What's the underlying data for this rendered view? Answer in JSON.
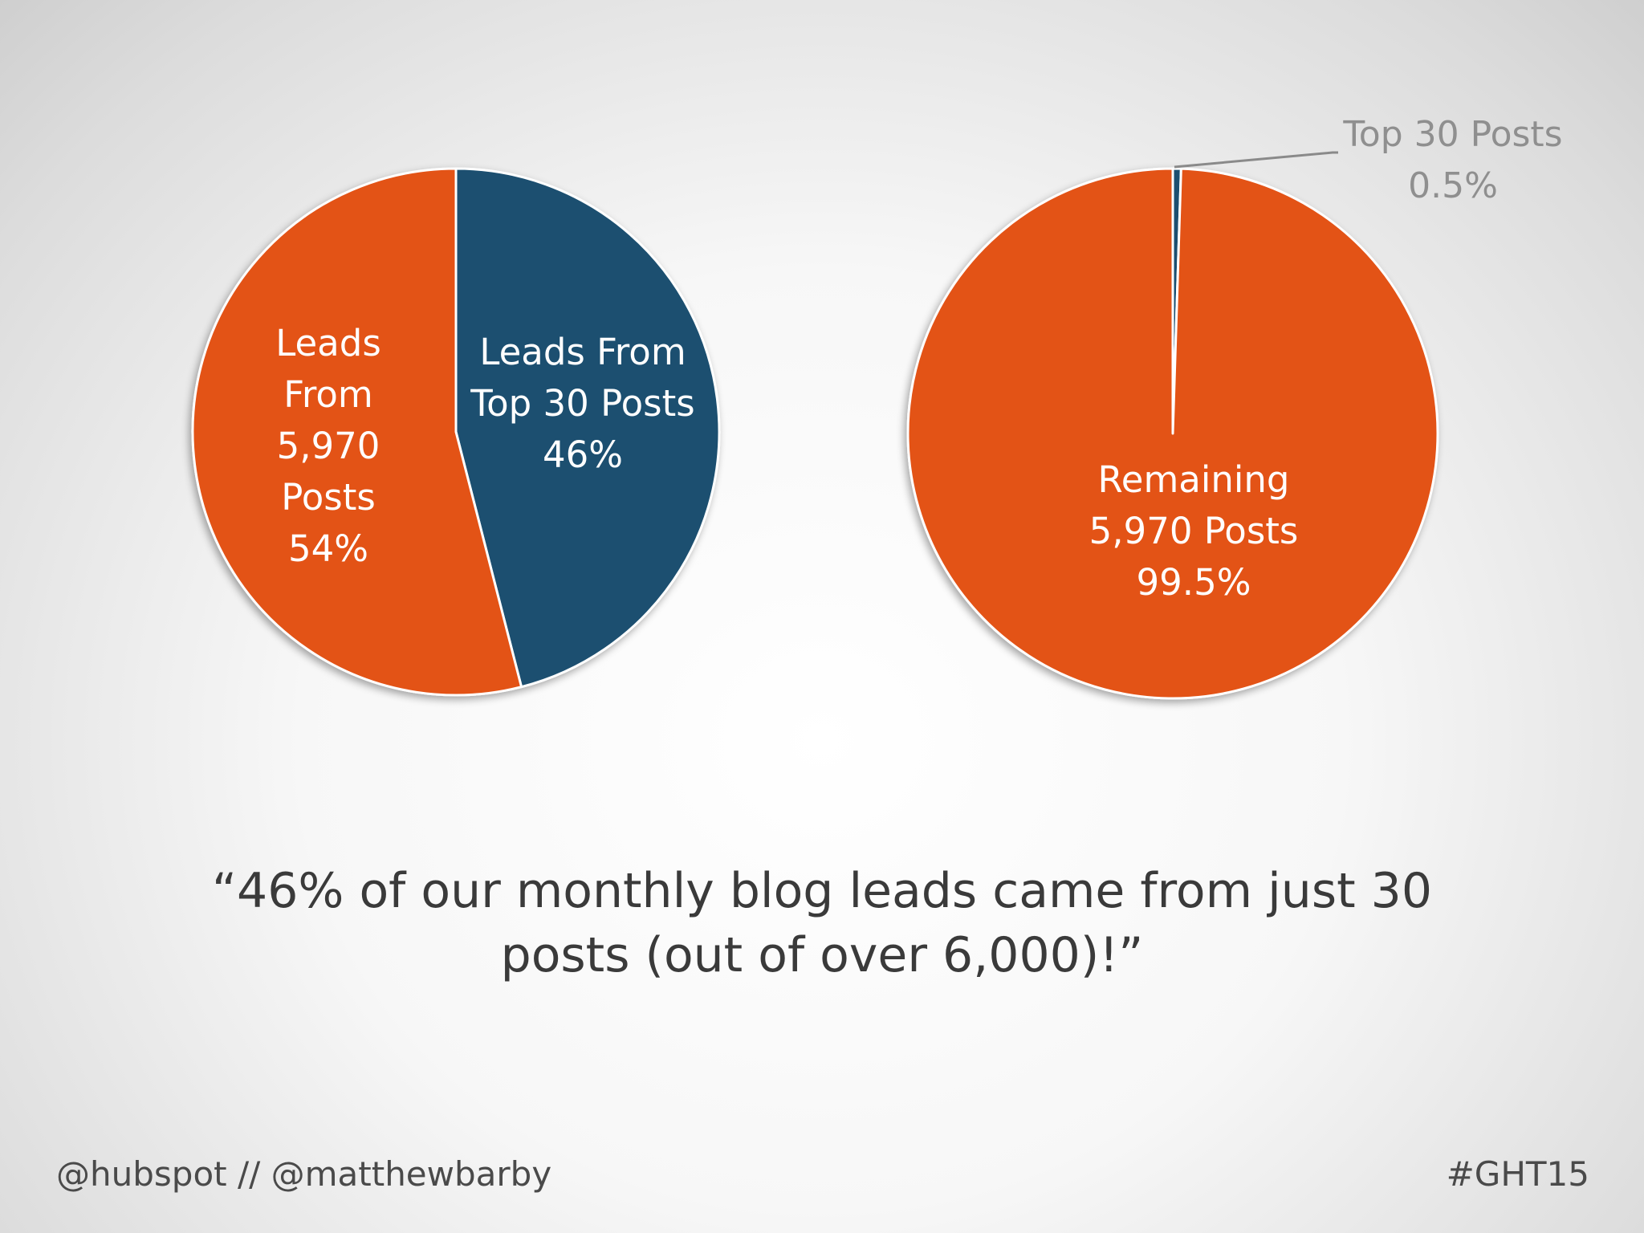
{
  "chart_data": [
    {
      "type": "pie",
      "slices": [
        {
          "label": "Leads From Top 30 Posts",
          "value": 46,
          "value_label": "46%",
          "color": "#1a5070"
        },
        {
          "label": "Leads From 5,970 Posts",
          "value": 54,
          "value_label": "54%",
          "color": "#e35217"
        }
      ]
    },
    {
      "type": "pie",
      "slices": [
        {
          "label": "Top 30 Posts",
          "value": 0.5,
          "value_label": "0.5%",
          "color": "#1a5070"
        },
        {
          "label": "Remaining 5,970 Posts",
          "value": 99.5,
          "value_label": "99.5%",
          "color": "#e35217"
        }
      ]
    }
  ],
  "labels": {
    "left": {
      "orange": [
        "Leads",
        "From",
        "5,970",
        "Posts",
        "54%"
      ],
      "blue": [
        "Leads From",
        "Top 30 Posts",
        "46%"
      ]
    },
    "right": {
      "orange": [
        "Remaining",
        "5,970 Posts",
        "99.5%"
      ],
      "callout": [
        "Top 30 Posts",
        "0.5%"
      ]
    }
  },
  "quote": {
    "line1": "“46% of our monthly blog leads came from just 30",
    "line2": "posts (out of over 6,000)!”"
  },
  "footer": {
    "left": "@hubspot // @matthewbarby",
    "right": "#GHT15"
  }
}
